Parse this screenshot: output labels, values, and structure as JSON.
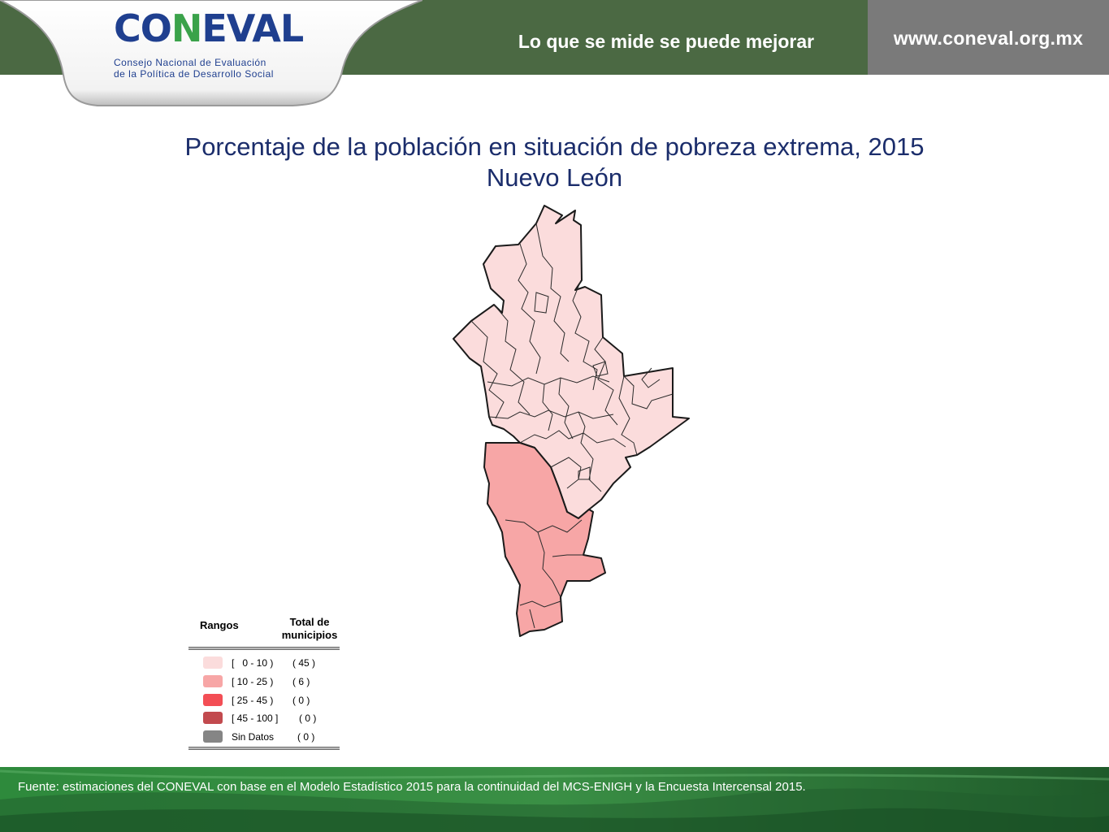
{
  "header": {
    "logo_main": "CONEVAL",
    "logo_main_a": "CO",
    "logo_main_b": "N",
    "logo_main_c": "EVAL",
    "logo_subtitle_1": "Consejo Nacional de Evaluación",
    "logo_subtitle_2": "de la Política de Desarrollo Social",
    "slogan": "Lo que se mide se puede mejorar",
    "url": "www.coneval.org.mx"
  },
  "title": {
    "line1": "Porcentaje de la población en situación de pobreza extrema, 2015",
    "line2": "Nuevo León"
  },
  "legend": {
    "header_ranges": "Rangos",
    "header_total_1": "Total de",
    "header_total_2": "municipios",
    "items": [
      {
        "label": "[   0 - 10 )",
        "count": "( 45 )",
        "color": "#fbdcdc"
      },
      {
        "label": "[ 10 - 25 )",
        "count": "( 6 )",
        "color": "#f7a6a6"
      },
      {
        "label": "[ 25 - 45 )",
        "count": "( 0 )",
        "color": "#f34e55"
      },
      {
        "label": "[ 45 - 100 ]",
        "count": "( 0 )",
        "color": "#c24a4e"
      },
      {
        "label": "Sin Datos",
        "count": "( 0 )",
        "color": "#858585"
      }
    ]
  },
  "map": {
    "colors": {
      "low": "#fbdcdc",
      "mid": "#f7a6a6",
      "outline": "#1a1a1a"
    }
  },
  "footer": {
    "source": "Fuente: estimaciones del CONEVAL con base en el Modelo Estadístico 2015 para la continuidad del MCS-ENIGH y la Encuesta Intercensal 2015."
  },
  "colors": {
    "header_green": "#4b6943",
    "url_gray": "#7a7a7a",
    "title_navy": "#1b2d6b",
    "footer_green": "#2f7a3a"
  }
}
